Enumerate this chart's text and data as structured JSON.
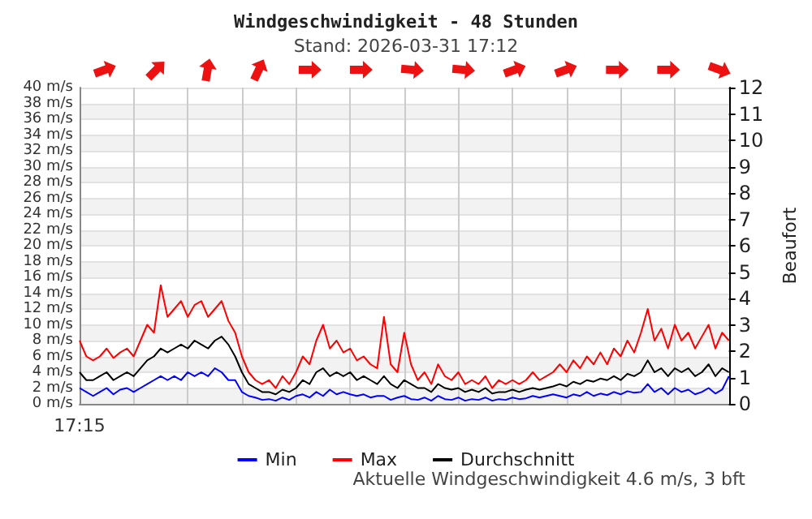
{
  "chart_data": {
    "type": "line",
    "title": "Windgeschwindigkeit - 48 Stunden",
    "subtitle": "Stand: 2026-03-31 17:12",
    "y2label": "Beaufort",
    "annotations": [
      "Aktuelle Windgeschwindigkeit 4.6 m/s, 3 bft"
    ],
    "categories": [
      "17:15",
      null,
      null,
      null,
      null,
      null,
      null,
      null,
      null,
      null,
      null,
      null,
      null,
      null,
      null,
      null,
      null,
      null,
      null,
      null,
      null,
      null,
      null,
      null,
      null,
      null,
      null,
      null,
      null,
      null,
      null,
      null,
      null,
      null,
      null,
      null,
      null,
      null,
      null,
      null,
      null,
      null,
      null,
      null,
      null,
      null,
      null,
      null,
      null,
      null,
      null,
      null,
      null,
      null,
      null,
      null,
      null,
      null,
      null,
      null,
      null,
      null,
      null,
      null,
      null,
      null,
      null,
      null,
      null,
      null,
      null,
      null,
      null,
      null,
      null,
      null,
      null,
      null,
      null,
      null,
      null,
      null,
      null,
      null,
      null,
      null,
      null,
      null,
      null,
      null,
      null,
      null,
      null,
      null,
      null,
      null,
      null
    ],
    "series": [
      {
        "name": "Min",
        "color": "#0000ff",
        "values": [
          2,
          1.5,
          1,
          1.5,
          2,
          1.2,
          1.8,
          2,
          1.5,
          2,
          2.5,
          3,
          3.5,
          3,
          3.5,
          3,
          4,
          3.5,
          4,
          3.5,
          4.5,
          4,
          3,
          3,
          1.5,
          1,
          0.8,
          0.5,
          0.6,
          0.4,
          0.8,
          0.5,
          1,
          1.2,
          0.8,
          1.5,
          1,
          1.8,
          1.2,
          1.5,
          1.2,
          1,
          1.2,
          0.8,
          1,
          1,
          0.5,
          0.8,
          1,
          0.6,
          0.5,
          0.8,
          0.4,
          1,
          0.6,
          0.5,
          0.8,
          0.4,
          0.6,
          0.5,
          0.8,
          0.4,
          0.6,
          0.5,
          0.8,
          0.6,
          0.7,
          1,
          0.8,
          1,
          1.2,
          1,
          0.8,
          1.2,
          1,
          1.5,
          1,
          1.3,
          1.1,
          1.5,
          1.2,
          1.6,
          1.4,
          1.5,
          2.5,
          1.5,
          2,
          1.2,
          2,
          1.5,
          1.8,
          1.2,
          1.5,
          2,
          1.3,
          1.8,
          3.5
        ]
      },
      {
        "name": "Max",
        "color": "#ff0000",
        "values": [
          8,
          6,
          5.5,
          6,
          7,
          5.8,
          6.5,
          7,
          6,
          8,
          10,
          9,
          15,
          11,
          12,
          13,
          11,
          12.5,
          13,
          11,
          12,
          13,
          10.5,
          9,
          6,
          4,
          3,
          2.5,
          3,
          2,
          3.5,
          2.5,
          4,
          6,
          5,
          8,
          10,
          7,
          8,
          6.5,
          7,
          5.5,
          6,
          5,
          4.5,
          11,
          5,
          4,
          9,
          5,
          3,
          4,
          2.5,
          5,
          3.5,
          3,
          4,
          2.5,
          3,
          2.5,
          3.5,
          2,
          3,
          2.5,
          3,
          2.5,
          3,
          4,
          3,
          3.5,
          4,
          5,
          4,
          5.5,
          4.5,
          6,
          5,
          6.5,
          5,
          7,
          6,
          8,
          6.5,
          9,
          12,
          8,
          9.5,
          7,
          10,
          8,
          9,
          7,
          8.5,
          10,
          7,
          9,
          8
        ]
      },
      {
        "name": "Durchschnitt",
        "color": "#000000",
        "values": [
          4,
          3,
          3,
          3.5,
          4,
          3,
          3.5,
          4,
          3.5,
          4.5,
          5.5,
          6,
          7,
          6.5,
          7,
          7.5,
          7,
          8,
          7.5,
          7,
          8,
          8.5,
          7.5,
          6,
          4,
          2.5,
          2,
          1.5,
          1.5,
          1.2,
          1.8,
          1.5,
          2,
          3,
          2.5,
          4,
          4.5,
          3.5,
          4,
          3.5,
          4,
          3,
          3.5,
          3,
          2.5,
          3.5,
          2.5,
          2,
          3,
          2.5,
          2,
          2,
          1.5,
          2.5,
          2,
          1.8,
          2,
          1.5,
          1.8,
          1.5,
          2,
          1.3,
          1.5,
          1.5,
          1.8,
          1.5,
          1.8,
          2,
          1.8,
          2,
          2.2,
          2.5,
          2.2,
          2.8,
          2.5,
          3,
          2.8,
          3.2,
          3,
          3.5,
          3,
          3.8,
          3.5,
          4,
          5.5,
          4,
          4.5,
          3.5,
          4.5,
          4,
          4.5,
          3.5,
          4,
          5,
          3.5,
          4.5,
          4
        ]
      }
    ],
    "ylim": [
      0,
      40
    ],
    "yticks": [
      {
        "value": 0,
        "label": "0 m/s"
      },
      {
        "value": 2,
        "label": "2 m/s"
      },
      {
        "value": 4,
        "label": "4 m/s"
      },
      {
        "value": 6,
        "label": "6 m/s"
      },
      {
        "value": 8,
        "label": "8 m/s"
      },
      {
        "value": 10,
        "label": "10 m/s"
      },
      {
        "value": 12,
        "label": "12 m/s"
      },
      {
        "value": 14,
        "label": "14 m/s"
      },
      {
        "value": 16,
        "label": "16 m/s"
      },
      {
        "value": 18,
        "label": "18 m/s"
      },
      {
        "value": 20,
        "label": "20 m/s"
      },
      {
        "value": 22,
        "label": "22 m/s"
      },
      {
        "value": 24,
        "label": "24 m/s"
      },
      {
        "value": 26,
        "label": "26 m/s"
      },
      {
        "value": 28,
        "label": "28 m/s"
      },
      {
        "value": 30,
        "label": "30 m/s"
      },
      {
        "value": 32,
        "label": "32 m/s"
      },
      {
        "value": 34,
        "label": "34 m/s"
      },
      {
        "value": 36,
        "label": "36 m/s"
      },
      {
        "value": 38,
        "label": "38 m/s"
      },
      {
        "value": 40,
        "label": "40 m/s"
      }
    ],
    "y2lim": [
      0,
      12
    ],
    "y2ticks": [
      0,
      1,
      2,
      3,
      4,
      5,
      6,
      7,
      8,
      9,
      10,
      11,
      12
    ],
    "grid": true,
    "legend": "bottom",
    "marker": "none",
    "line_style": "solid"
  }
}
